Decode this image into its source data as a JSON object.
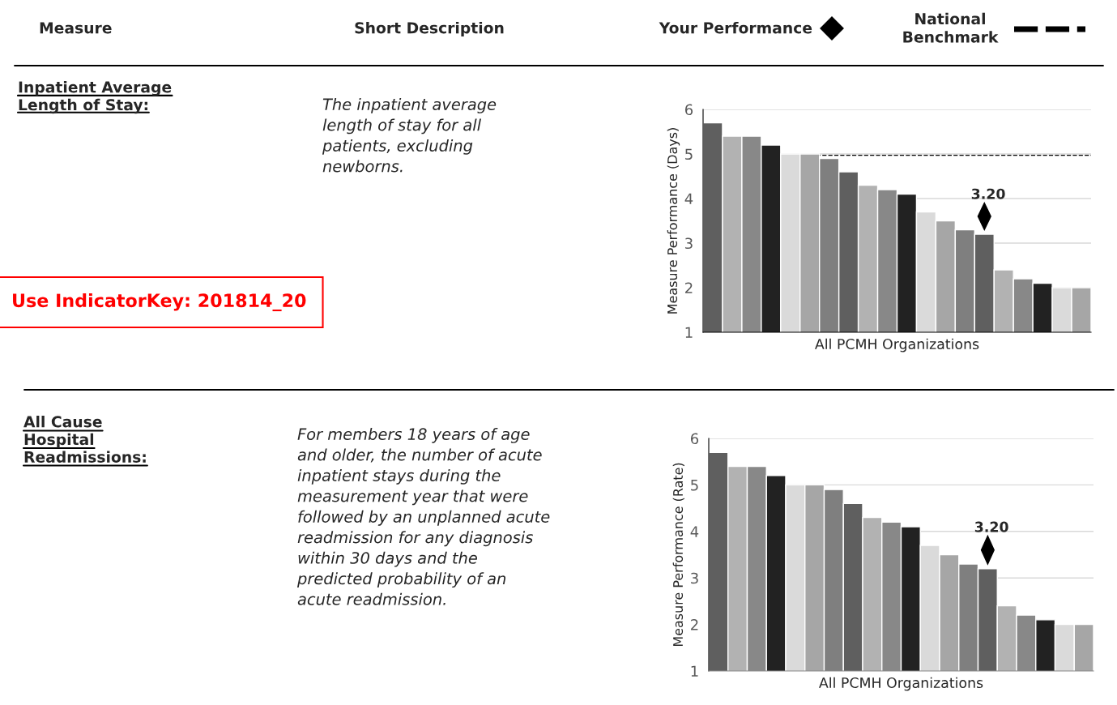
{
  "chart_data": [
    {
      "type": "other",
      "annotations": [
        "Measure",
        "Short Description",
        "Your Performance",
        "National Benchmark"
      ]
    },
    {
      "type": "bar",
      "ylabel": "Measure Performance (Days)",
      "xlabel": "All PCMH Organizations",
      "categories": [
        null,
        null,
        null,
        null,
        null,
        null,
        null,
        null,
        null,
        null,
        null,
        null,
        null,
        null,
        null,
        null,
        null,
        null,
        null,
        null
      ],
      "values": [
        5.7,
        5.4,
        5.4,
        5.2,
        5.0,
        5.0,
        4.9,
        4.6,
        4.3,
        4.2,
        4.1,
        3.7,
        3.5,
        3.3,
        3.2,
        2.4,
        2.2,
        2.1,
        2.0,
        2.0
      ],
      "colors": [
        "#5f5f5f",
        "#b2b2b2",
        "#888888",
        "#222222",
        "#dadada",
        "#a6a6a6",
        "#7f7f7f",
        "#5f5f5f",
        "#b2b2b2",
        "#888888",
        "#222222",
        "#dadada",
        "#a6a6a6",
        "#7f7f7f",
        "#5f5f5f",
        "#b2b2b2",
        "#888888",
        "#222222",
        "#dadada",
        "#a6a6a6"
      ],
      "value_labels": [
        null,
        null,
        null,
        null,
        null,
        null,
        null,
        null,
        null,
        null,
        null,
        null,
        null,
        null,
        "3.20",
        null,
        null,
        null,
        null,
        null
      ],
      "ylim": [
        1,
        6
      ],
      "yticks": [
        1,
        2,
        3,
        4,
        5,
        6
      ],
      "grid": "y",
      "ref_lines": [
        {
          "axis": "y",
          "value": 4.97,
          "line_style": "dashed",
          "color": "#000000"
        }
      ],
      "annotations": [
        "Inpatient Average\nLength of Stay:",
        "The inpatient average\nlength of stay for all\npatients, excluding\nnewborns.",
        "Use IndicatorKey: 201814_20"
      ]
    },
    {
      "type": "bar",
      "ylabel": "Measure Performance (Rate)",
      "xlabel": "All PCMH Organizations",
      "categories": [
        null,
        null,
        null,
        null,
        null,
        null,
        null,
        null,
        null,
        null,
        null,
        null,
        null,
        null,
        null,
        null,
        null,
        null,
        null,
        null
      ],
      "values": [
        5.7,
        5.4,
        5.4,
        5.2,
        5.0,
        5.0,
        4.9,
        4.6,
        4.3,
        4.2,
        4.1,
        3.7,
        3.5,
        3.3,
        3.2,
        2.4,
        2.2,
        2.1,
        2.0,
        2.0
      ],
      "colors": [
        "#5f5f5f",
        "#b2b2b2",
        "#888888",
        "#222222",
        "#dadada",
        "#a6a6a6",
        "#7f7f7f",
        "#5f5f5f",
        "#b2b2b2",
        "#888888",
        "#222222",
        "#dadada",
        "#a6a6a6",
        "#7f7f7f",
        "#5f5f5f",
        "#b2b2b2",
        "#888888",
        "#222222",
        "#dadada",
        "#a6a6a6"
      ],
      "value_labels": [
        null,
        null,
        null,
        null,
        null,
        null,
        null,
        null,
        null,
        null,
        null,
        null,
        null,
        null,
        "3.20",
        null,
        null,
        null,
        null,
        null
      ],
      "ylim": [
        1,
        6
      ],
      "yticks": [
        1,
        2,
        3,
        4,
        5,
        6
      ],
      "grid": "y",
      "annotations": [
        "All Cause\nHospital\nReadmissions:",
        "For members 18 years of age\nand older, the number of acute\ninpatient stays during the\nmeasurement year that were\nfollowed by an unplanned acute\nreadmission for any diagnosis\nwithin 30 days and the\npredicted probability of an\nacute readmission."
      ]
    }
  ]
}
